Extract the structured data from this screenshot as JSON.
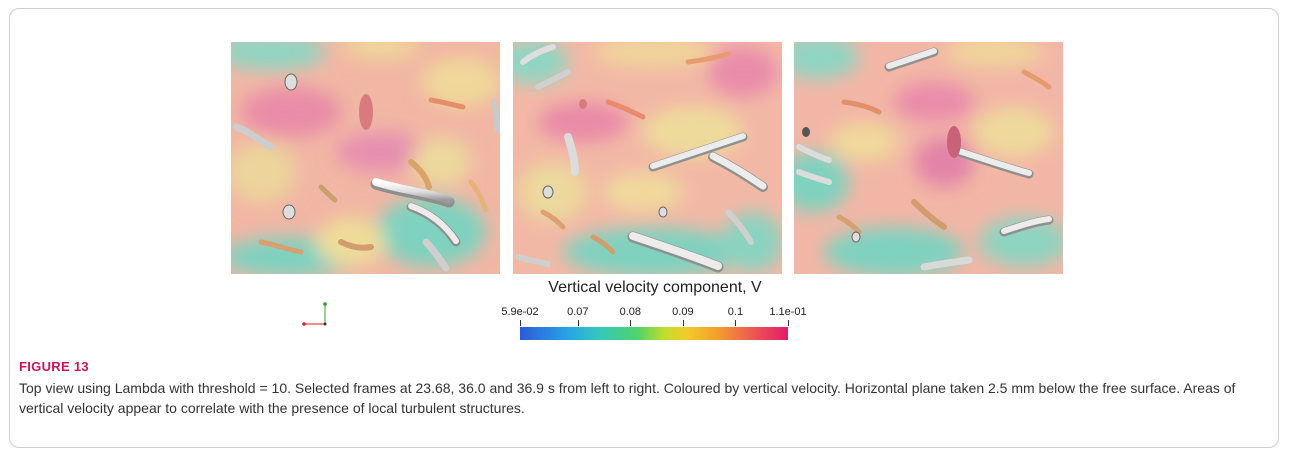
{
  "figure": {
    "label": "FIGURE 13",
    "caption": "Top view using Lambda with threshold = 10. Selected frames at 23.68, 36.0 and 36.9 s from left to right. Coloured by vertical velocity. Horizontal plane taken 2.5 mm below the free surface. Areas of vertical velocity appear to correlate with the presence of local turbulent structures."
  },
  "colorbar": {
    "title": "Vertical velocity component, V",
    "min": 0.059,
    "max": 0.11,
    "ticks": [
      {
        "label": "5.9e-02",
        "value": 0.059
      },
      {
        "label": "0.07",
        "value": 0.07
      },
      {
        "label": "0.08",
        "value": 0.08
      },
      {
        "label": "0.09",
        "value": 0.09
      },
      {
        "label": "0.1",
        "value": 0.1
      },
      {
        "label": "1.1e-01",
        "value": 0.11
      }
    ],
    "colors": [
      "#2d5ad8",
      "#36c8b8",
      "#4fd36a",
      "#f2cc2a",
      "#f29d2e",
      "#e31b6a"
    ]
  },
  "palette": {
    "background_field": "#f3b0a6",
    "high_velocity": "#e98ca6",
    "low_velocity": "#7fd2bf",
    "mid_velocity": "#e9d89a",
    "structure": "#ececec",
    "axis_x": "#d2242a",
    "axis_y": "#2ca02c"
  },
  "frames": [
    {
      "name": "frame-1"
    },
    {
      "name": "frame-2"
    },
    {
      "name": "frame-3"
    }
  ]
}
